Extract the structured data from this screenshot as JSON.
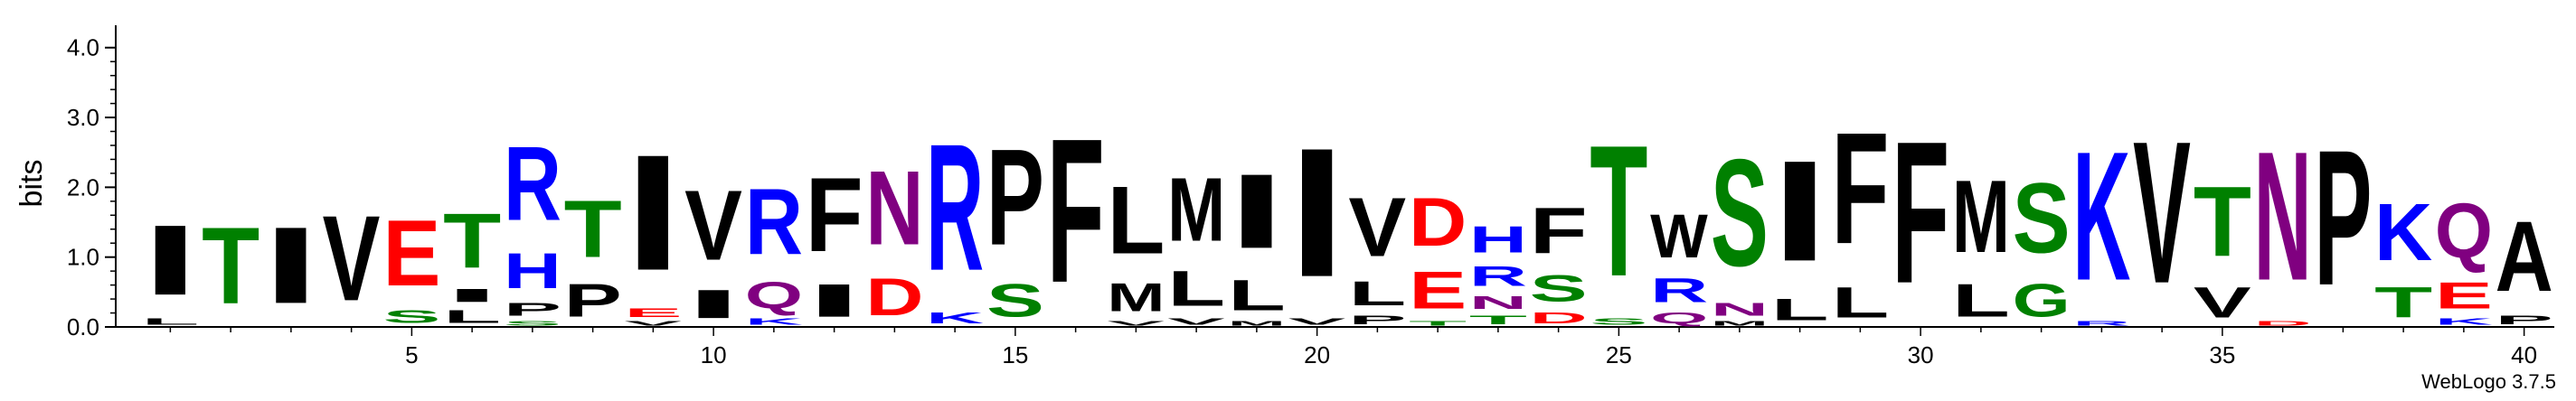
{
  "chart_data": {
    "type": "sequence-logo",
    "ylabel": "bits",
    "ylim": [
      0,
      4.32
    ],
    "y_ticks": [
      "0.0",
      "1.0",
      "2.0",
      "3.0",
      "4.0"
    ],
    "y_tick_values": [
      0,
      1,
      2,
      3,
      4
    ],
    "x_ticks": [
      "5",
      "10",
      "15",
      "20",
      "25",
      "30",
      "35",
      "40"
    ],
    "x_tick_values": [
      5,
      10,
      15,
      20,
      25,
      30,
      35,
      40
    ],
    "positions_count": 40,
    "credit": "WebLogo 3.7.5",
    "colors": {
      "A": "#000000",
      "C": "#008000",
      "D": "#ff0000",
      "E": "#ff0000",
      "F": "#000000",
      "G": "#008000",
      "H": "#0000ff",
      "I": "#000000",
      "K": "#0000ff",
      "L": "#000000",
      "M": "#000000",
      "N": "#800080",
      "P": "#000000",
      "Q": "#800080",
      "R": "#0000ff",
      "S": "#008000",
      "T": "#008000",
      "V": "#000000",
      "W": "#000000",
      "Y": "#008000"
    },
    "stacks": [
      {
        "position": 1,
        "letters": [
          {
            "letter": "L",
            "bits": 0.15
          },
          {
            "letter": "I",
            "bits": 1.6
          }
        ]
      },
      {
        "position": 2,
        "letters": [
          {
            "letter": "T",
            "bits": 1.75
          }
        ]
      },
      {
        "position": 3,
        "letters": [
          {
            "letter": "I",
            "bits": 1.75
          }
        ]
      },
      {
        "position": 4,
        "letters": [
          {
            "letter": "V",
            "bits": 1.95
          }
        ]
      },
      {
        "position": 5,
        "letters": [
          {
            "letter": "S",
            "bits": 0.3
          },
          {
            "letter": "E",
            "bits": 1.5
          }
        ]
      },
      {
        "position": 6,
        "letters": [
          {
            "letter": "L",
            "bits": 0.3
          },
          {
            "letter": "I",
            "bits": 0.3
          },
          {
            "letter": "T",
            "bits": 1.25
          }
        ]
      },
      {
        "position": 7,
        "letters": [
          {
            "letter": "S",
            "bits": 0.1
          },
          {
            "letter": "P",
            "bits": 0.3
          },
          {
            "letter": "H",
            "bits": 0.8
          },
          {
            "letter": "R",
            "bits": 1.7
          }
        ]
      },
      {
        "position": 8,
        "letters": [
          {
            "letter": "P",
            "bits": 0.75
          },
          {
            "letter": "T",
            "bits": 1.3
          }
        ]
      },
      {
        "position": 9,
        "letters": [
          {
            "letter": "V",
            "bits": 0.1
          },
          {
            "letter": "E",
            "bits": 0.2
          },
          {
            "letter": "I",
            "bits": 2.65
          }
        ]
      },
      {
        "position": 10,
        "letters": [
          {
            "letter": "I",
            "bits": 0.65
          },
          {
            "letter": "V",
            "bits": 1.6
          }
        ]
      },
      {
        "position": 11,
        "letters": [
          {
            "letter": "K",
            "bits": 0.15
          },
          {
            "letter": "Q",
            "bits": 0.6
          },
          {
            "letter": "R",
            "bits": 1.5
          }
        ]
      },
      {
        "position": 12,
        "letters": [
          {
            "letter": "I",
            "bits": 0.75
          },
          {
            "letter": "F",
            "bits": 1.7
          }
        ]
      },
      {
        "position": 13,
        "letters": [
          {
            "letter": "D",
            "bits": 0.85
          },
          {
            "letter": "N",
            "bits": 1.7
          }
        ]
      },
      {
        "position": 14,
        "letters": [
          {
            "letter": "K",
            "bits": 0.25
          },
          {
            "letter": "R",
            "bits": 2.9
          }
        ]
      },
      {
        "position": 15,
        "letters": [
          {
            "letter": "S",
            "bits": 0.75
          },
          {
            "letter": "P",
            "bits": 2.2
          }
        ]
      },
      {
        "position": 16,
        "letters": [
          {
            "letter": "F",
            "bits": 3.3
          }
        ]
      },
      {
        "position": 17,
        "letters": [
          {
            "letter": "V",
            "bits": 0.1
          },
          {
            "letter": "M",
            "bits": 0.65
          },
          {
            "letter": "L",
            "bits": 1.55
          }
        ]
      },
      {
        "position": 18,
        "letters": [
          {
            "letter": "V",
            "bits": 0.15
          },
          {
            "letter": "L",
            "bits": 0.8
          },
          {
            "letter": "M",
            "bits": 1.45
          }
        ]
      },
      {
        "position": 19,
        "letters": [
          {
            "letter": "M",
            "bits": 0.1
          },
          {
            "letter": "L",
            "bits": 0.7
          },
          {
            "letter": "I",
            "bits": 1.7
          }
        ]
      },
      {
        "position": 20,
        "letters": [
          {
            "letter": "V",
            "bits": 0.15
          },
          {
            "letter": "I",
            "bits": 2.95
          }
        ]
      },
      {
        "position": 21,
        "letters": [
          {
            "letter": "P",
            "bits": 0.2
          },
          {
            "letter": "L",
            "bits": 0.55
          },
          {
            "letter": "V",
            "bits": 1.35
          }
        ]
      },
      {
        "position": 22,
        "letters": [
          {
            "letter": "T",
            "bits": 0.1
          },
          {
            "letter": "E",
            "bits": 0.85
          },
          {
            "letter": "D",
            "bits": 1.1
          }
        ]
      },
      {
        "position": 23,
        "letters": [
          {
            "letter": "T",
            "bits": 0.2
          },
          {
            "letter": "N",
            "bits": 0.3
          },
          {
            "letter": "R",
            "bits": 0.45
          },
          {
            "letter": "H",
            "bits": 0.6
          }
        ]
      },
      {
        "position": 24,
        "letters": [
          {
            "letter": "D",
            "bits": 0.25
          },
          {
            "letter": "S",
            "bits": 0.6
          },
          {
            "letter": "F",
            "bits": 1.05
          }
        ]
      },
      {
        "position": 25,
        "letters": [
          {
            "letter": "S",
            "bits": 0.15
          },
          {
            "letter": "T",
            "bits": 3.0
          }
        ]
      },
      {
        "position": 26,
        "letters": [
          {
            "letter": "Q",
            "bits": 0.25
          },
          {
            "letter": "R",
            "bits": 0.55
          },
          {
            "letter": "W",
            "bits": 1.0
          }
        ]
      },
      {
        "position": 27,
        "letters": [
          {
            "letter": "M",
            "bits": 0.1
          },
          {
            "letter": "N",
            "bits": 0.3
          },
          {
            "letter": "S",
            "bits": 2.45
          }
        ]
      },
      {
        "position": 28,
        "letters": [
          {
            "letter": "L",
            "bits": 0.5
          },
          {
            "letter": "I",
            "bits": 2.3
          }
        ]
      },
      {
        "position": 29,
        "letters": [
          {
            "letter": "L",
            "bits": 0.7
          },
          {
            "letter": "F",
            "bits": 2.55
          }
        ]
      },
      {
        "position": 30,
        "letters": [
          {
            "letter": "F",
            "bits": 3.25
          }
        ]
      },
      {
        "position": 31,
        "letters": [
          {
            "letter": "L",
            "bits": 0.75
          },
          {
            "letter": "M",
            "bits": 1.65
          }
        ]
      },
      {
        "position": 32,
        "letters": [
          {
            "letter": "G",
            "bits": 0.75
          },
          {
            "letter": "S",
            "bits": 1.6
          }
        ]
      },
      {
        "position": 33,
        "letters": [
          {
            "letter": "R",
            "bits": 0.1
          },
          {
            "letter": "K",
            "bits": 2.95
          }
        ]
      },
      {
        "position": 34,
        "letters": [
          {
            "letter": "V",
            "bits": 3.25
          }
        ]
      },
      {
        "position": 35,
        "letters": [
          {
            "letter": "V",
            "bits": 0.7
          },
          {
            "letter": "T",
            "bits": 1.6
          }
        ]
      },
      {
        "position": 36,
        "letters": [
          {
            "letter": "D",
            "bits": 0.1
          },
          {
            "letter": "N",
            "bits": 2.95
          }
        ]
      },
      {
        "position": 37,
        "letters": [
          {
            "letter": "P",
            "bits": 3.1
          }
        ]
      },
      {
        "position": 38,
        "letters": [
          {
            "letter": "T",
            "bits": 0.7
          },
          {
            "letter": "K",
            "bits": 1.3
          }
        ]
      },
      {
        "position": 39,
        "letters": [
          {
            "letter": "K",
            "bits": 0.15
          },
          {
            "letter": "E",
            "bits": 0.6
          },
          {
            "letter": "Q",
            "bits": 1.25
          }
        ]
      },
      {
        "position": 40,
        "letters": [
          {
            "letter": "P",
            "bits": 0.2
          },
          {
            "letter": "A",
            "bits": 1.6
          }
        ]
      }
    ]
  }
}
